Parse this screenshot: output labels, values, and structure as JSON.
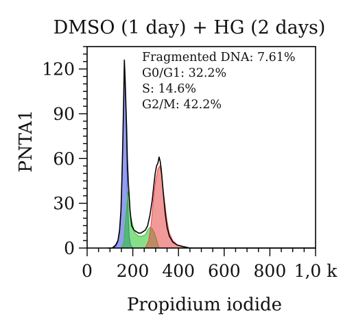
{
  "chart_data": {
    "type": "area",
    "title": "DMSO (1 day) + HG (2 days)",
    "xlabel": "Propidium iodide",
    "ylabel": "PNTA1",
    "xlim": [
      0,
      1000
    ],
    "ylim": [
      0,
      135
    ],
    "x_ticks": [
      0,
      200,
      400,
      600,
      800,
      1000
    ],
    "x_tick_labels": [
      "0",
      "200",
      "400",
      "600",
      "800",
      "1,0 k"
    ],
    "y_ticks": [
      0,
      30,
      60,
      90,
      120
    ],
    "y_tick_labels": [
      "0",
      "30",
      "60",
      "90",
      "120"
    ],
    "grid": false,
    "annotations": [
      "Fragmented DNA: 7.61%",
      "G0/G1: 32.2%",
      "S: 14.6%",
      "G2/M: 42.2%"
    ],
    "series": [
      {
        "role": "histogram",
        "color": "#000000",
        "x": [
          90,
          110,
          125,
          135,
          142,
          148,
          152,
          156,
          160,
          163,
          166,
          170,
          173,
          176,
          180,
          184,
          188,
          195,
          205,
          215,
          225,
          235,
          245,
          255,
          265,
          275,
          285,
          292,
          298,
          304,
          310,
          315,
          320,
          325,
          330,
          336,
          342,
          350,
          360,
          375,
          395,
          420,
          450,
          480,
          520,
          600,
          700,
          800,
          900,
          1000
        ],
        "y": [
          0,
          0,
          2,
          5,
          12,
          25,
          45,
          70,
          100,
          126,
          115,
          95,
          80,
          60,
          45,
          35,
          25,
          15,
          12,
          11,
          10,
          10,
          11,
          12,
          15,
          22,
          32,
          42,
          50,
          55,
          57,
          61,
          58,
          52,
          43,
          33,
          23,
          14,
          8,
          4,
          2,
          1,
          0,
          0,
          0,
          0,
          0,
          0,
          0,
          0
        ]
      },
      {
        "name": "G0/G1",
        "color": "#3a50d8",
        "x": [
          110,
          125,
          135,
          142,
          148,
          152,
          156,
          160,
          163,
          166,
          170,
          173,
          176,
          180,
          184,
          190,
          200
        ],
        "y": [
          0,
          1,
          4,
          10,
          22,
          42,
          68,
          98,
          118,
          110,
          88,
          65,
          42,
          22,
          8,
          2,
          0
        ]
      },
      {
        "name": "S",
        "color": "#27c427",
        "x": [
          150,
          160,
          170,
          180,
          190,
          200,
          210,
          225,
          240,
          255,
          265,
          275,
          285,
          295,
          305,
          315
        ],
        "y": [
          0,
          3,
          22,
          38,
          22,
          15,
          10,
          8,
          8,
          9,
          12,
          14,
          13,
          10,
          5,
          0
        ]
      },
      {
        "name": "G2/M",
        "color": "#e84545",
        "x": [
          255,
          270,
          280,
          290,
          300,
          310,
          318,
          325,
          332,
          340,
          350,
          360,
          375,
          395,
          420,
          450
        ],
        "y": [
          0,
          5,
          16,
          32,
          45,
          53,
          55,
          50,
          40,
          30,
          18,
          10,
          5,
          2,
          1,
          0
        ]
      }
    ]
  }
}
